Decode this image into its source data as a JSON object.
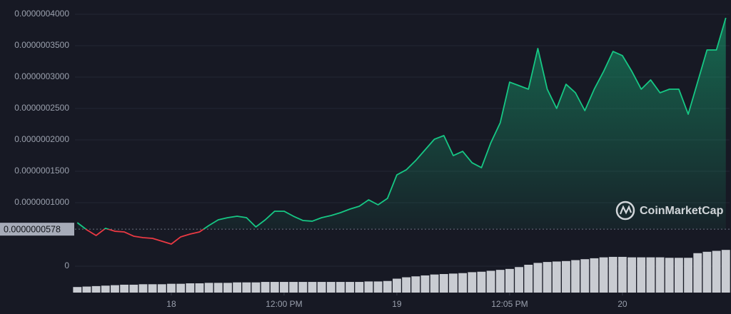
{
  "chart_data": {
    "type": "line",
    "x": [
      -10,
      -9,
      -8,
      -7,
      -6,
      -5,
      -4,
      -3,
      -2,
      -1,
      0,
      1,
      2,
      3,
      4,
      5,
      6,
      7,
      8,
      9,
      10,
      11,
      12,
      13,
      14,
      15,
      16,
      17,
      18,
      19,
      20,
      21,
      22,
      23,
      24,
      25,
      26,
      27,
      28,
      29,
      30,
      31,
      32,
      33,
      34,
      35,
      36,
      37,
      38,
      39,
      40,
      41,
      42,
      43,
      44,
      45,
      46,
      47,
      48,
      49,
      50,
      51,
      52,
      53,
      54,
      55,
      56,
      57,
      58,
      59
    ],
    "series": [
      {
        "name": "Price",
        "color": "#16c784",
        "below_color": "#ea3943",
        "values": [
          6.82e-08,
          5.68e-08,
          4.77e-08,
          5.91e-08,
          5.45e-08,
          5.34e-08,
          4.66e-08,
          4.43e-08,
          4.32e-08,
          3.86e-08,
          3.41e-08,
          4.55e-08,
          5e-08,
          5.34e-08,
          6.36e-08,
          7.27e-08,
          7.61e-08,
          7.84e-08,
          7.61e-08,
          6.14e-08,
          7.27e-08,
          8.64e-08,
          8.64e-08,
          7.84e-08,
          7.16e-08,
          7.05e-08,
          7.61e-08,
          7.95e-08,
          8.41e-08,
          8.98e-08,
          9.43e-08,
          1.045e-07,
          9.66e-08,
          1.068e-07,
          1.443e-07,
          1.523e-07,
          1.67e-07,
          1.841e-07,
          2.011e-07,
          2.068e-07,
          1.75e-07,
          1.818e-07,
          1.636e-07,
          1.557e-07,
          1.955e-07,
          2.273e-07,
          2.92e-07,
          2.864e-07,
          2.807e-07,
          3.455e-07,
          2.807e-07,
          2.5e-07,
          2.886e-07,
          2.75e-07,
          2.466e-07,
          2.807e-07,
          3.091e-07,
          3.409e-07,
          3.341e-07,
          3.091e-07,
          2.807e-07,
          2.955e-07,
          2.75e-07,
          2.807e-07,
          2.807e-07,
          2.409e-07,
          2.92e-07,
          3.432e-07,
          3.432e-07,
          3.943e-07
        ]
      },
      {
        "name": "Volume",
        "color": "#c9ccd2",
        "axis": "v",
        "values": [
          12,
          13,
          14,
          15,
          16,
          17,
          17,
          18,
          18,
          18,
          19,
          19,
          20,
          20,
          21,
          21,
          21,
          22,
          22,
          22,
          23,
          23,
          23,
          23,
          23,
          23,
          23,
          23,
          23,
          23,
          23,
          24,
          24,
          25,
          30,
          33,
          35,
          37,
          39,
          40,
          41,
          42,
          44,
          45,
          47,
          49,
          51,
          55,
          60,
          64,
          66,
          67,
          68,
          70,
          72,
          74,
          76,
          77,
          77,
          76,
          76,
          76,
          76,
          75,
          75,
          75,
          85,
          88,
          90,
          92
        ]
      }
    ],
    "baseline": {
      "value": 5.78e-08,
      "label": "0.0000000578"
    },
    "xlim": [
      -10.25,
      59.4
    ],
    "xticks": [
      {
        "value": 0,
        "label": "18"
      },
      {
        "value": 12,
        "label": "12:00 PM"
      },
      {
        "value": 24,
        "label": "19"
      },
      {
        "value": 36,
        "label": "12:05 PM"
      },
      {
        "value": 48,
        "label": "20"
      }
    ],
    "ylim": [
      2.5e-08,
      4e-07
    ],
    "yticks": [
      {
        "value": 1e-07,
        "label": "0.0000001000"
      },
      {
        "value": 1.5e-07,
        "label": "0.0000001500"
      },
      {
        "value": 2e-07,
        "label": "0.0000002000"
      },
      {
        "value": 2.5e-07,
        "label": "0.0000002500"
      },
      {
        "value": 3e-07,
        "label": "0.0000003000"
      },
      {
        "value": 3.5e-07,
        "label": "0.0000003500"
      },
      {
        "value": 4e-07,
        "label": "0.0000004000"
      }
    ],
    "vlim": [
      0,
      100
    ],
    "vticks": [
      0
    ],
    "grid": true,
    "watermark": "CoinMarketCap"
  }
}
